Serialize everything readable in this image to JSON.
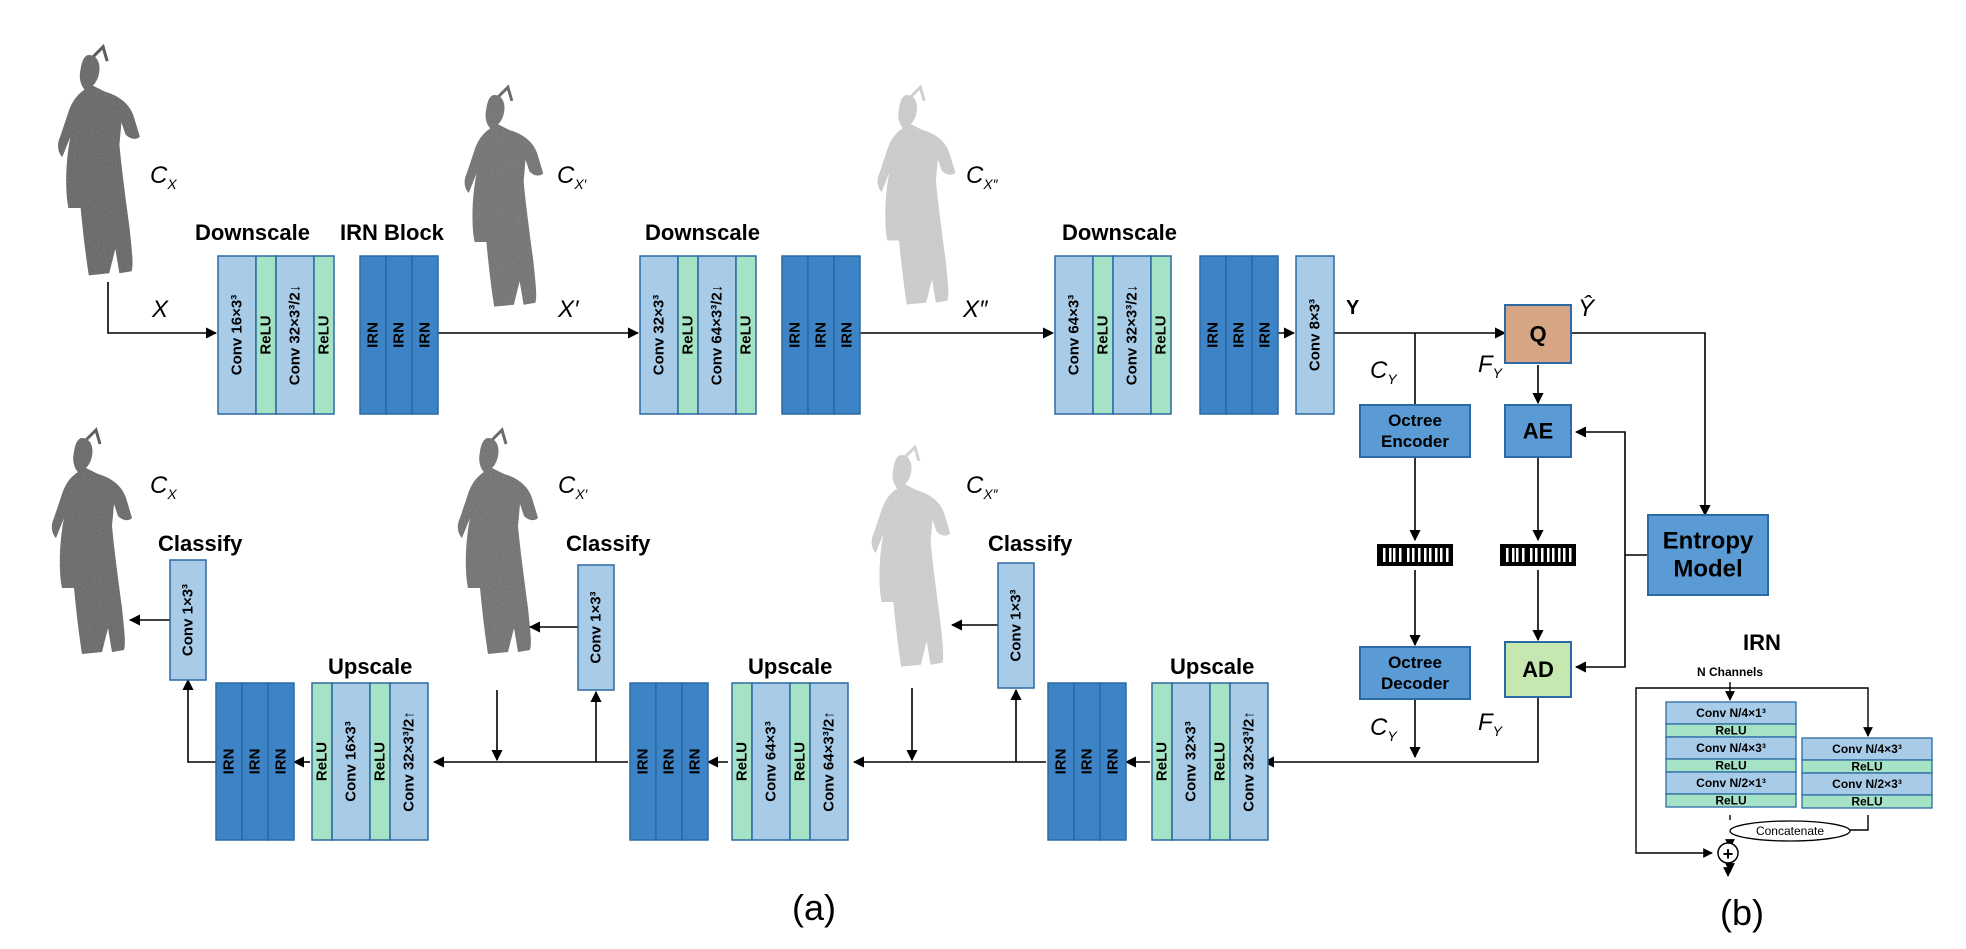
{
  "section_titles": {
    "downscale": "Downscale",
    "irn_block": "IRN Block",
    "upscale": "Upscale",
    "classify": "Classify"
  },
  "layers": {
    "conv16": "Conv 16×3³",
    "conv32": "Conv 32×3³",
    "conv64": "Conv 64×3³",
    "conv8": "Conv 8×3³",
    "relu": "ReLU",
    "irn": "IRN",
    "conv32_down": "Conv 32×3³/2↓",
    "conv64_down": "Conv 64×3³/2↓",
    "conv32_up": "Conv 32×3³/2↑",
    "conv64_up": "Conv 64×3³/2↑",
    "conv1": "Conv 1×3³"
  },
  "signals": {
    "x": "X",
    "x1": "X′",
    "x2": "X″",
    "y": "Y",
    "y_hat": "Ŷ",
    "c_x": "C",
    "c_x_sub": "X",
    "c_x1_sub": "X′",
    "c_x2_sub": "X″",
    "c_y": "C",
    "c_y_sub": "Y",
    "f_y": "F",
    "f_y_sub": "Y"
  },
  "modules": {
    "q": "Q",
    "ae": "AE",
    "ad": "AD",
    "octree_encoder_1": "Octree",
    "octree_encoder_2": "Encoder",
    "octree_decoder_1": "Octree",
    "octree_decoder_2": "Decoder",
    "entropy_model_1": "Entropy",
    "entropy_model_2": "Model"
  },
  "irn_detail": {
    "title": "IRN",
    "n_channels": "N Channels",
    "left_branch": [
      "Conv N/4×1³",
      "ReLU",
      "Conv N/4×3³",
      "ReLU",
      "Conv N/2×1³",
      "ReLU"
    ],
    "right_branch": [
      "Conv N/4×3³",
      "ReLU",
      "Conv N/2×3³",
      "ReLU"
    ],
    "concatenate": "Concatenate",
    "plus": "+"
  },
  "subfigure_labels": {
    "a": "(a)",
    "b": "(b)"
  },
  "colors": {
    "conv_light_blue": "#a8cbe8",
    "relu_green": "#a6e3c6",
    "irn_dark_blue": "#3d84c6",
    "module_blue": "#5b9bd5",
    "q_brown": "#d5a584",
    "ad_green": "#c6e8b0",
    "stroke": "#2b6aa3"
  }
}
